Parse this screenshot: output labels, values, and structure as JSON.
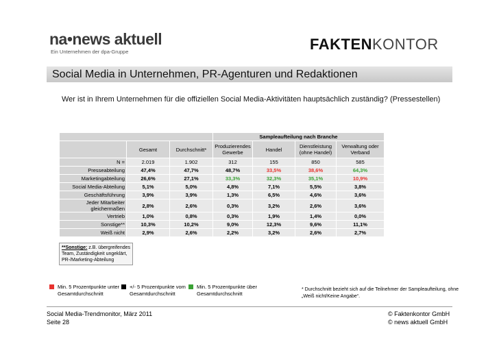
{
  "header": {
    "logo_left": {
      "name": "na•news aktuell",
      "tagline": "Ein Unternehmen der dpa-Gruppe"
    },
    "logo_right": {
      "bold": "FAKTEN",
      "light": "KONTOR"
    }
  },
  "title": "Social Media in Unternehmen, PR-Agenturen und Redaktionen",
  "question": "Wer ist in Ihrem Unternehmen für die offiziellen Social Media-Aktivitäten hauptsächlich zuständig? (Pressestellen)",
  "table": {
    "group_header": "Sampleaufteilung nach Branche",
    "columns": [
      "Gesamt",
      "Durchschnitt*",
      "Produzierendes Gewerbe",
      "Handel",
      "Dienstleistung (ohne Handel)",
      "Verwaltung oder Verband"
    ],
    "rows": [
      {
        "label": "N =",
        "cells": [
          "2.019",
          "1.902",
          "312",
          "155",
          "850",
          "585"
        ]
      },
      {
        "label": "Presseabteilung",
        "cells": [
          "47,4%",
          "47,7%",
          "48,7%",
          "33,5%",
          "38,6%",
          "64,3%"
        ]
      },
      {
        "label": "Marketingabteilung",
        "cells": [
          "26,6%",
          "27,1%",
          "33,3%",
          "32,3%",
          "35,1%",
          "10,9%"
        ]
      },
      {
        "label": "Social Media-Abteilung",
        "cells": [
          "5,1%",
          "5,0%",
          "4,8%",
          "7,1%",
          "5,5%",
          "3,8%"
        ]
      },
      {
        "label": "Geschäftsführung",
        "cells": [
          "3,9%",
          "3,9%",
          "1,3%",
          "6,5%",
          "4,6%",
          "3,6%"
        ]
      },
      {
        "label": "Jeder Mitarbeiter gleichermaßen",
        "cells": [
          "2,8%",
          "2,6%",
          "0,3%",
          "3,2%",
          "2,6%",
          "3,6%"
        ]
      },
      {
        "label": "Vertrieb",
        "cells": [
          "1,0%",
          "0,8%",
          "0,3%",
          "1,9%",
          "1,4%",
          "0,0%"
        ]
      },
      {
        "label": "Sonstige**",
        "cells": [
          "10,3%",
          "10,2%",
          "9,0%",
          "12,3%",
          "9,6%",
          "11,1%"
        ]
      },
      {
        "label": "Weiß nicht",
        "cells": [
          "2,9%",
          "2,6%",
          "2,2%",
          "3,2%",
          "2,6%",
          "2,7%"
        ]
      }
    ],
    "highlights": [
      {
        "row": 1,
        "col": 3,
        "color": "#e8322e"
      },
      {
        "row": 1,
        "col": 4,
        "color": "#e8322e"
      },
      {
        "row": 1,
        "col": 5,
        "color": "#3aa235"
      },
      {
        "row": 2,
        "col": 2,
        "color": "#3aa235"
      },
      {
        "row": 2,
        "col": 3,
        "color": "#3aa235"
      },
      {
        "row": 2,
        "col": 4,
        "color": "#3aa235"
      },
      {
        "row": 2,
        "col": 5,
        "color": "#e8322e"
      }
    ]
  },
  "note": {
    "term": "**Sonstige:",
    "text": "z.B. übergreifendes Team, Zuständigkeit ungeklärt, PR-/Marketing-Abteilung"
  },
  "legend": [
    {
      "color": "#e8322e",
      "text": "Min. 5 Prozentpunkte unter Gesamtdurchschnitt"
    },
    {
      "color": "#000000",
      "text": "+/- 5 Prozentpunkte vom Gesamtdurchschnitt"
    },
    {
      "color": "#3aa235",
      "text": "Min. 5 Prozentpunkte über Gesamtdurchschnitt"
    }
  ],
  "footnote": "* Durchschnitt bezieht sich auf die Teilnehmer der Sampleaufteilung, ohne „Weiß nicht/Keine Angabe“.",
  "footer": {
    "source": "Social Media-Trendmonitor, März 2011",
    "page": "Seite 28",
    "copyright": [
      "© Faktenkontor GmbH",
      "© news aktuell GmbH"
    ]
  }
}
